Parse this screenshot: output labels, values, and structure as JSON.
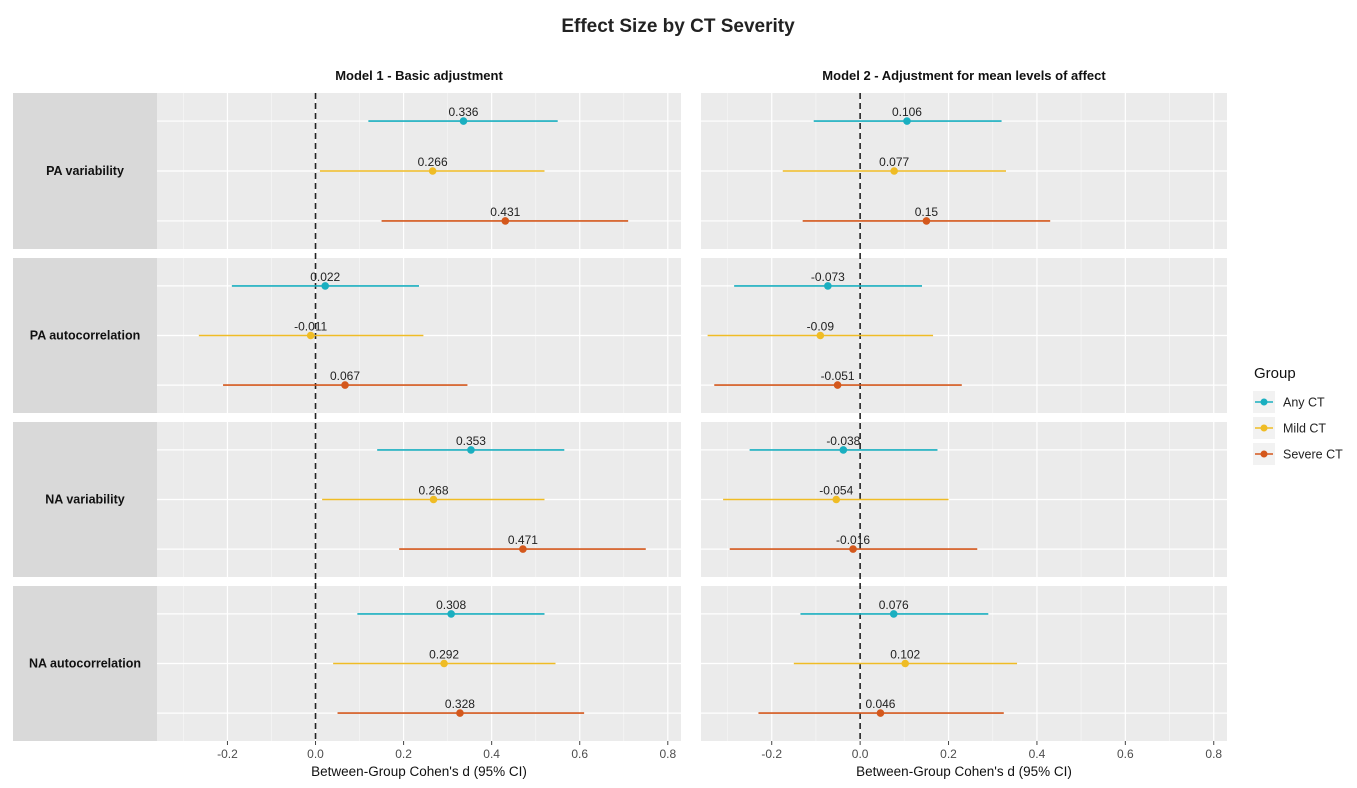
{
  "chart_data": {
    "type": "forest",
    "title": "Effect Size by CT Severity",
    "xlabel": "Between-Group Cohen's d (95% CI)",
    "xlim": [
      -0.36,
      0.83
    ],
    "x_ticks": [
      -0.2,
      0.0,
      0.2,
      0.4,
      0.6,
      0.8
    ],
    "x_tick_labels": [
      "-0.2",
      "0.0",
      "0.2",
      "0.4",
      "0.6",
      "0.8"
    ],
    "reference_line": 0,
    "grid": true,
    "legend": {
      "title": "Group",
      "position": "right",
      "entries": [
        {
          "name": "Any CT",
          "color": "#1aafc0"
        },
        {
          "name": "Mild CT",
          "color": "#efbc25"
        },
        {
          "name": "Severe CT",
          "color": "#d4581c"
        }
      ]
    },
    "panels": [
      {
        "title": "Model 1 - Basic adjustment"
      },
      {
        "title": "Model 2 - Adjustment for mean levels of affect"
      }
    ],
    "rows": [
      {
        "label": "PA variability"
      },
      {
        "label": "PA autocorrelation"
      },
      {
        "label": "NA variability"
      },
      {
        "label": "NA autocorrelation"
      }
    ],
    "series": [
      {
        "name": "Any CT",
        "color": "#1aafc0",
        "data": [
          [
            {
              "est": 0.336,
              "lo": 0.12,
              "hi": 0.55,
              "label": "0.336"
            },
            {
              "est": 0.022,
              "lo": -0.19,
              "hi": 0.235,
              "label": "0.022"
            },
            {
              "est": 0.353,
              "lo": 0.14,
              "hi": 0.565,
              "label": "0.353"
            },
            {
              "est": 0.308,
              "lo": 0.095,
              "hi": 0.52,
              "label": "0.308"
            }
          ],
          [
            {
              "est": 0.106,
              "lo": -0.105,
              "hi": 0.32,
              "label": "0.106"
            },
            {
              "est": -0.073,
              "lo": -0.285,
              "hi": 0.14,
              "label": "-0.073"
            },
            {
              "est": -0.038,
              "lo": -0.25,
              "hi": 0.175,
              "label": "-0.038"
            },
            {
              "est": 0.076,
              "lo": -0.135,
              "hi": 0.29,
              "label": "0.076"
            }
          ]
        ]
      },
      {
        "name": "Mild CT",
        "color": "#efbc25",
        "data": [
          [
            {
              "est": 0.266,
              "lo": 0.01,
              "hi": 0.52,
              "label": "0.266"
            },
            {
              "est": -0.011,
              "lo": -0.265,
              "hi": 0.245,
              "label": "-0.011"
            },
            {
              "est": 0.268,
              "lo": 0.015,
              "hi": 0.52,
              "label": "0.268"
            },
            {
              "est": 0.292,
              "lo": 0.04,
              "hi": 0.545,
              "label": "0.292"
            }
          ],
          [
            {
              "est": 0.077,
              "lo": -0.175,
              "hi": 0.33,
              "label": "0.077"
            },
            {
              "est": -0.09,
              "lo": -0.345,
              "hi": 0.165,
              "label": "-0.09"
            },
            {
              "est": -0.054,
              "lo": -0.31,
              "hi": 0.2,
              "label": "-0.054"
            },
            {
              "est": 0.102,
              "lo": -0.15,
              "hi": 0.355,
              "label": "0.102"
            }
          ]
        ]
      },
      {
        "name": "Severe CT",
        "color": "#d4581c",
        "data": [
          [
            {
              "est": 0.431,
              "lo": 0.15,
              "hi": 0.71,
              "label": "0.431"
            },
            {
              "est": 0.067,
              "lo": -0.21,
              "hi": 0.345,
              "label": "0.067"
            },
            {
              "est": 0.471,
              "lo": 0.19,
              "hi": 0.75,
              "label": "0.471"
            },
            {
              "est": 0.328,
              "lo": 0.05,
              "hi": 0.61,
              "label": "0.328"
            }
          ],
          [
            {
              "est": 0.15,
              "lo": -0.13,
              "hi": 0.43,
              "label": "0.15"
            },
            {
              "est": -0.051,
              "lo": -0.33,
              "hi": 0.23,
              "label": "-0.051"
            },
            {
              "est": -0.016,
              "lo": -0.295,
              "hi": 0.265,
              "label": "-0.016"
            },
            {
              "est": 0.046,
              "lo": -0.23,
              "hi": 0.325,
              "label": "0.046"
            }
          ]
        ]
      }
    ]
  }
}
